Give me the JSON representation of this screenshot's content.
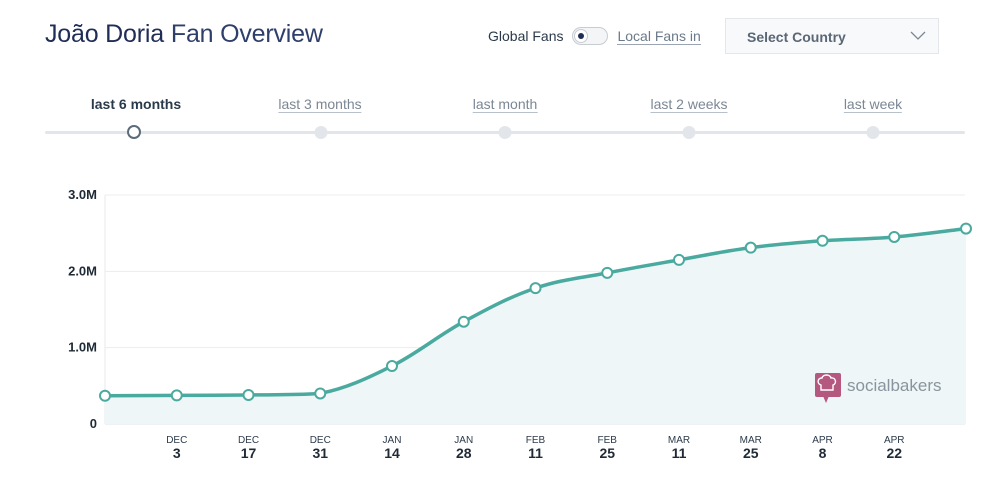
{
  "header": {
    "title_name": "João Doria",
    "title_rest": "Fan Overview"
  },
  "toggle": {
    "global_label": "Global Fans",
    "local_label": "Local Fans in",
    "state": "global"
  },
  "country_select": {
    "selected": "Select Country"
  },
  "time_ranges": {
    "active_index": 0,
    "items": [
      {
        "label": "last 6 months"
      },
      {
        "label": "last 3 months"
      },
      {
        "label": "last month"
      },
      {
        "label": "last 2 weeks"
      },
      {
        "label": "last week"
      }
    ]
  },
  "brand": {
    "text": "socialbakers",
    "icon": "chef-hat-chat-icon",
    "color": "#b4587f"
  },
  "colors": {
    "line": "#4aaa9f",
    "area": "#eef6f7"
  },
  "chart_data": {
    "type": "area",
    "y_tick_labels": [
      "0",
      "1.0M",
      "2.0M",
      "3.0M"
    ],
    "y_tick_values": [
      0,
      1000000,
      2000000,
      3000000
    ],
    "ylim": [
      0,
      3000000
    ],
    "grid": true,
    "x_labels": [
      {
        "month": "DEC",
        "day": "3"
      },
      {
        "month": "DEC",
        "day": "17"
      },
      {
        "month": "DEC",
        "day": "31"
      },
      {
        "month": "JAN",
        "day": "14"
      },
      {
        "month": "JAN",
        "day": "28"
      },
      {
        "month": "FEB",
        "day": "11"
      },
      {
        "month": "FEB",
        "day": "25"
      },
      {
        "month": "MAR",
        "day": "11"
      },
      {
        "month": "MAR",
        "day": "25"
      },
      {
        "month": "APR",
        "day": "8"
      },
      {
        "month": "APR",
        "day": "22"
      }
    ],
    "series": [
      {
        "points": [
          {
            "date": "Nov 19",
            "value": 370000
          },
          {
            "date": "Dec 3",
            "value": 375000
          },
          {
            "date": "Dec 17",
            "value": 380000
          },
          {
            "date": "Dec 31",
            "value": 400000
          },
          {
            "date": "Jan 14",
            "value": 760000
          },
          {
            "date": "Jan 28",
            "value": 1340000
          },
          {
            "date": "Feb 11",
            "value": 1780000
          },
          {
            "date": "Feb 25",
            "value": 1980000
          },
          {
            "date": "Mar 11",
            "value": 2150000
          },
          {
            "date": "Mar 25",
            "value": 2310000
          },
          {
            "date": "Apr 8",
            "value": 2400000
          },
          {
            "date": "Apr 22",
            "value": 2450000
          },
          {
            "date": "May 6",
            "value": 2560000
          }
        ]
      }
    ]
  }
}
